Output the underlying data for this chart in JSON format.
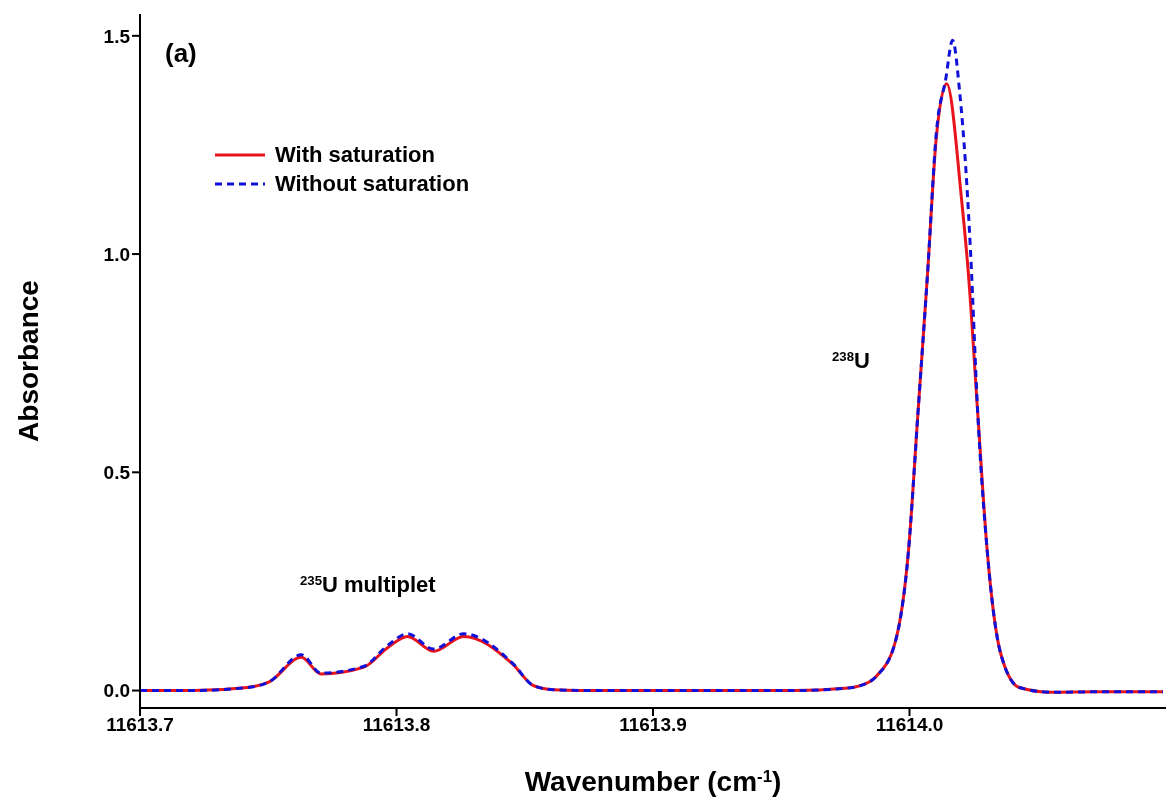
{
  "chart_data": {
    "type": "line",
    "xlabel": "Wavenumber (cm$^{-1}$)",
    "ylabel": "Absorbance",
    "annotations": [
      "(a)",
      "$^{238}$U",
      "$^{235}$U multiplet"
    ],
    "xlim": [
      11613.7,
      11614.1
    ],
    "xticks": [
      11613.7,
      11613.8,
      11613.9,
      {
        "value": 11614.0,
        "label": "11614.0"
      }
    ],
    "ylim": [
      -0.04,
      1.55
    ],
    "yticks": [
      {
        "value": 0,
        "label": "0.0"
      },
      0.5,
      {
        "value": 1,
        "label": "1.0"
      },
      1.5
    ],
    "legend": "top left",
    "series": [
      {
        "name": "With saturation",
        "color": "#e8141c",
        "line_style": "solid",
        "x": [
          11613.7,
          11613.7207,
          11613.7418,
          11613.7504,
          11613.7629,
          11613.7705,
          11613.7871,
          11613.7969,
          11613.8043,
          11613.8145,
          11613.8262,
          11613.8452,
          11613.8535,
          11613.8613,
          11613.877,
          11613.916,
          11613.9551,
          11613.9746,
          11613.9801,
          11613.9871,
          11613.9943,
          11613.9996,
          11614.0033,
          11614.007,
          11614.0105,
          11614.0145,
          11614.0203,
          11614.023,
          11614.0266,
          11614.0303,
          11614.0355,
          11614.0428,
          11614.0555,
          11614.0723,
          11614.0988
        ],
        "values": [
          0,
          0,
          0.007,
          0.02,
          0.076,
          0.038,
          0.053,
          0.1,
          0.124,
          0.09,
          0.124,
          0.061,
          0.011,
          0.002,
          0,
          0,
          0,
          0.005,
          0.01,
          0.033,
          0.108,
          0.32,
          0.636,
          0.952,
          1.27,
          1.39,
          1.125,
          0.952,
          0.636,
          0.32,
          0.086,
          0.007,
          -0.004,
          -0.003,
          -0.003
        ]
      },
      {
        "name": "Without saturation",
        "color": "#1010d8",
        "line_style": "dashed",
        "x": [
          11613.7,
          11613.7207,
          11613.7418,
          11613.7504,
          11613.7629,
          11613.7705,
          11613.7871,
          11613.7969,
          11613.8043,
          11613.8145,
          11613.8262,
          11613.8452,
          11613.8535,
          11613.8613,
          11613.877,
          11613.916,
          11613.9551,
          11613.9746,
          11613.9801,
          11613.9871,
          11613.9943,
          11613.9996,
          11614.0033,
          11614.007,
          11614.0105,
          11614.0141,
          11614.0168,
          11614.0195,
          11614.0223,
          11614.0238,
          11614.0266,
          11614.0303,
          11614.0355,
          11614.0428,
          11614.0555,
          11614.0723,
          11614.0988
        ],
        "values": [
          0,
          0,
          0.007,
          0.02,
          0.082,
          0.04,
          0.055,
          0.105,
          0.13,
          0.095,
          0.13,
          0.063,
          0.011,
          0.002,
          0,
          0,
          0,
          0.005,
          0.01,
          0.033,
          0.108,
          0.32,
          0.636,
          0.952,
          1.28,
          1.4,
          1.49,
          1.375,
          1.164,
          1.005,
          0.636,
          0.32,
          0.086,
          0.007,
          -0.004,
          -0.003,
          -0.003
        ]
      }
    ]
  }
}
